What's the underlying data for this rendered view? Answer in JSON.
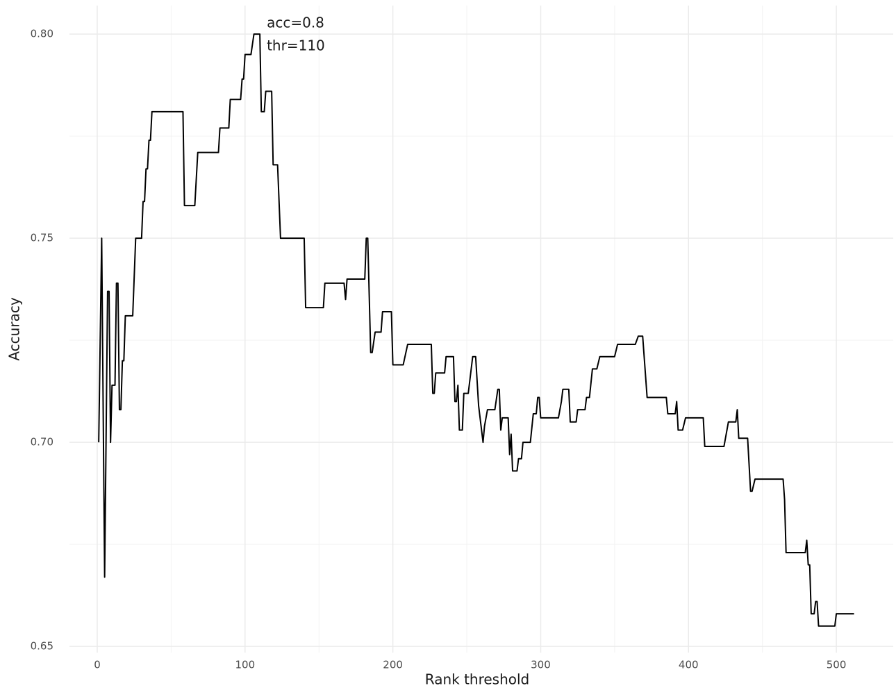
{
  "chart_data": {
    "type": "line",
    "x_label": "Rank threshold",
    "y_label": "Accuracy",
    "annotation": {
      "lines": [
        "acc=0.8",
        "thr=110"
      ],
      "x": 110,
      "y": 0.8
    },
    "color": "#000000",
    "grid": true,
    "xlim": [
      -18.8,
      538.5
    ],
    "ylim": [
      0.6485,
      0.807
    ],
    "xticks": [
      0,
      100,
      200,
      300,
      400,
      500
    ],
    "yticks": [
      {
        "value": 0.65,
        "label": "0.65"
      },
      {
        "value": 0.7,
        "label": "0.70"
      },
      {
        "value": 0.75,
        "label": "0.75"
      },
      {
        "value": 0.8,
        "label": "0.80"
      }
    ],
    "x": [
      1,
      3,
      5,
      7,
      8,
      9,
      10,
      12,
      13,
      14,
      15,
      16,
      17,
      18,
      19,
      24,
      26,
      30,
      31,
      32,
      33,
      34,
      35,
      36,
      37,
      58,
      59,
      66,
      68,
      82,
      83,
      89,
      90,
      97,
      98,
      99,
      100,
      104,
      106,
      110,
      111,
      113,
      114,
      118,
      119,
      122,
      124,
      140,
      141,
      153,
      154,
      167,
      168,
      169,
      181,
      182,
      183,
      184,
      185,
      186,
      188,
      192,
      193,
      199,
      200,
      207,
      210,
      226,
      227,
      228,
      229,
      235,
      236,
      241,
      242,
      243,
      244,
      245,
      247,
      248,
      251,
      254,
      256,
      258,
      261,
      262,
      264,
      269,
      271,
      272,
      273,
      274,
      278,
      279,
      280,
      281,
      284,
      285,
      287,
      288,
      293,
      295,
      297,
      298,
      299,
      300,
      312,
      314,
      315,
      319,
      320,
      324,
      325,
      330,
      331,
      333,
      335,
      338,
      340,
      350,
      352,
      364,
      366,
      369,
      372,
      385,
      386,
      391,
      392,
      393,
      396,
      398,
      410,
      411,
      424,
      427,
      432,
      433,
      434,
      440,
      442,
      443,
      445,
      464,
      465,
      466,
      479,
      480,
      481,
      482,
      483,
      485,
      486,
      487,
      488,
      499,
      500,
      512
    ],
    "values": [
      0.7,
      0.75,
      0.667,
      0.737,
      0.737,
      0.7,
      0.714,
      0.714,
      0.739,
      0.739,
      0.708,
      0.708,
      0.72,
      0.72,
      0.731,
      0.731,
      0.75,
      0.75,
      0.759,
      0.759,
      0.767,
      0.767,
      0.774,
      0.774,
      0.781,
      0.781,
      0.758,
      0.758,
      0.771,
      0.771,
      0.777,
      0.777,
      0.784,
      0.784,
      0.789,
      0.789,
      0.795,
      0.795,
      0.8,
      0.8,
      0.781,
      0.781,
      0.786,
      0.786,
      0.768,
      0.768,
      0.75,
      0.75,
      0.733,
      0.733,
      0.739,
      0.739,
      0.735,
      0.74,
      0.74,
      0.75,
      0.75,
      0.736,
      0.722,
      0.722,
      0.727,
      0.727,
      0.732,
      0.732,
      0.719,
      0.719,
      0.724,
      0.724,
      0.712,
      0.712,
      0.717,
      0.717,
      0.721,
      0.721,
      0.71,
      0.71,
      0.714,
      0.703,
      0.703,
      0.712,
      0.712,
      0.721,
      0.721,
      0.709,
      0.7,
      0.704,
      0.708,
      0.708,
      0.713,
      0.713,
      0.703,
      0.706,
      0.706,
      0.697,
      0.702,
      0.693,
      0.693,
      0.696,
      0.696,
      0.7,
      0.7,
      0.707,
      0.707,
      0.711,
      0.711,
      0.706,
      0.706,
      0.71,
      0.713,
      0.713,
      0.705,
      0.705,
      0.708,
      0.708,
      0.711,
      0.711,
      0.718,
      0.718,
      0.721,
      0.721,
      0.724,
      0.724,
      0.726,
      0.726,
      0.711,
      0.711,
      0.707,
      0.707,
      0.71,
      0.703,
      0.703,
      0.706,
      0.706,
      0.699,
      0.699,
      0.705,
      0.705,
      0.708,
      0.701,
      0.701,
      0.688,
      0.688,
      0.691,
      0.691,
      0.686,
      0.673,
      0.673,
      0.676,
      0.67,
      0.67,
      0.658,
      0.658,
      0.661,
      0.661,
      0.655,
      0.655,
      0.658,
      0.658
    ]
  }
}
